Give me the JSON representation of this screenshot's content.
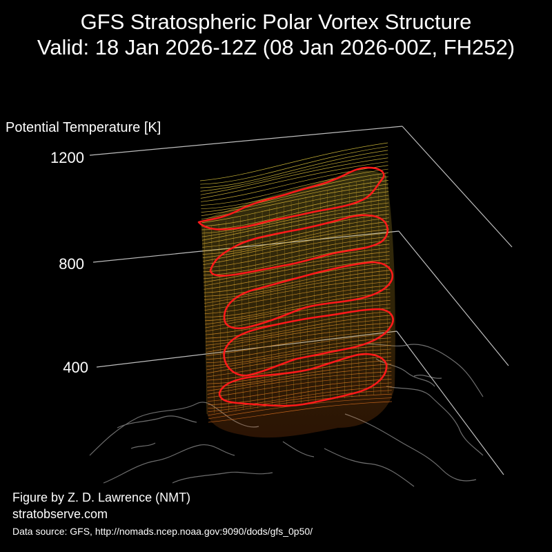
{
  "title": {
    "line1": "GFS Stratospheric Polar Vortex Structure",
    "line2": "Valid: 18 Jan 2026-12Z  (08 Jan 2026-00Z, FH252)"
  },
  "axis": {
    "label": "Potential Temperature [K]",
    "ticks": [
      "1200",
      "800",
      "400"
    ]
  },
  "credits": {
    "author": "Figure by Z. D. Lawrence (NMT)",
    "site": "stratobserve.com",
    "source": "Data source: GFS, http://nomads.ncep.noaa.gov:9090/dods/gfs_0p50/"
  },
  "colors": {
    "background": "#000000",
    "vortex_low": "#d97a1a",
    "vortex_high": "#e8d040",
    "highlight_contour": "#ff1a1a",
    "coastline": "#7a7a7a",
    "grid": "#bfbfbf"
  }
}
